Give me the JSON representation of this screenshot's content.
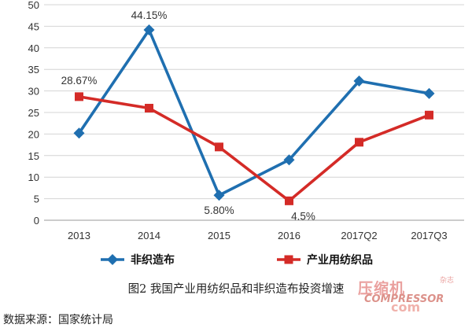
{
  "chart_data": {
    "type": "line",
    "categories": [
      "2013",
      "2014",
      "2015",
      "2016",
      "2017Q2",
      "2017Q3"
    ],
    "ylim": [
      0,
      50
    ],
    "yticks": [
      "0",
      "5",
      "10",
      "15",
      "20",
      "25",
      "30",
      "35",
      "40",
      "45",
      "50"
    ],
    "grid": true,
    "legend_position": "bottom",
    "series": [
      {
        "name": "非织造布",
        "color": "#1f6fb0",
        "marker": "diamond",
        "values": [
          20.2,
          44.15,
          5.8,
          14.0,
          32.3,
          29.4
        ]
      },
      {
        "name": "产业用纺织品",
        "color": "#d42b27",
        "marker": "square",
        "values": [
          28.67,
          26.0,
          17.0,
          4.5,
          18.1,
          24.4
        ]
      }
    ],
    "annotations": [
      {
        "text": "44.15%"
      },
      {
        "text": "28.67%"
      },
      {
        "text": "5.80%"
      },
      {
        "text": "4.5%"
      }
    ]
  },
  "caption": "图2  我国产业用纺织品和非织造布投资增速",
  "source": "数据来源：国家统计局",
  "watermark": {
    "main": "压缩机",
    "sub": "COMPRESSOR",
    "url": "com",
    "side": "杂志"
  }
}
